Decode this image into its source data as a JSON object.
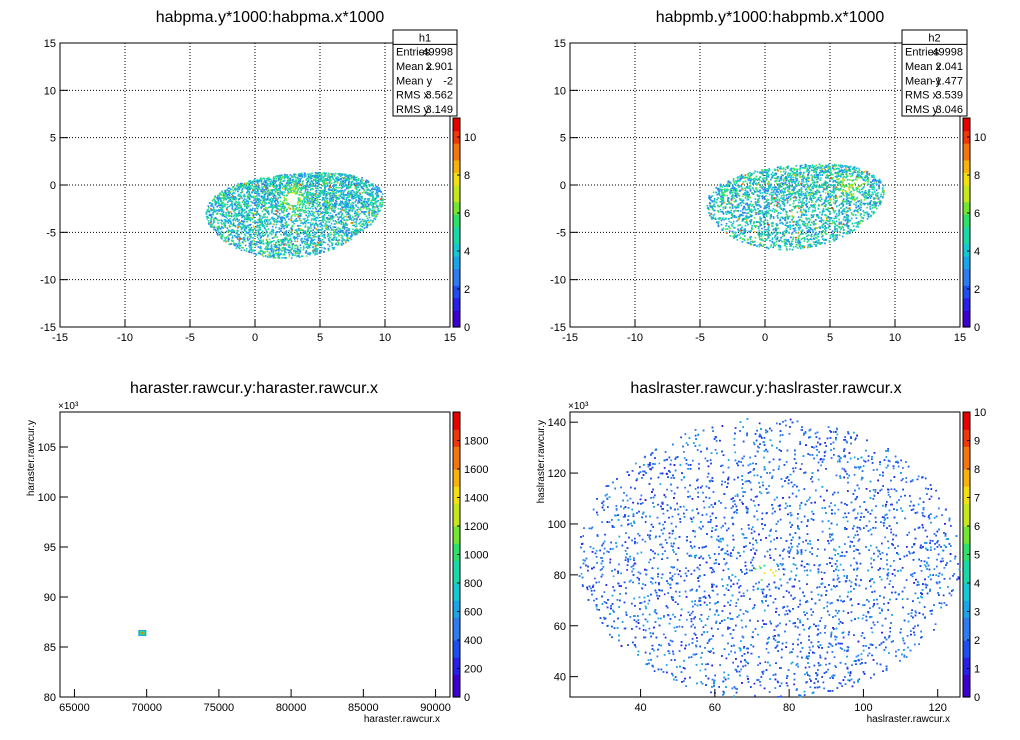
{
  "chart_data": [
    {
      "type": "heatmap",
      "title": "habpma.y*1000:habpma.x*1000",
      "xlabel": "",
      "ylabel": "",
      "xlim": [
        -15,
        15
      ],
      "ylim": [
        -15,
        15
      ],
      "xticks": [
        "-15",
        "-10",
        "-5",
        "0",
        "5",
        "10",
        "15"
      ],
      "yticks": [
        "-15",
        "-10",
        "-5",
        "0",
        "5",
        "10",
        "15"
      ],
      "grid": true,
      "palette_ticks": [
        "0",
        "2",
        "4",
        "6",
        "8",
        "10"
      ],
      "palette_max": 11,
      "stats": {
        "name": "h1",
        "rows": [
          {
            "label": "Entries",
            "value": "49998"
          },
          {
            "label": "Mean x",
            "value": "2.901"
          },
          {
            "label": "Mean y",
            "value": "-2"
          },
          {
            "label": "RMS x",
            "value": "3.562"
          },
          {
            "label": "RMS y",
            "value": "3.149"
          }
        ]
      },
      "blob": {
        "cx": 3,
        "cy": -2.2,
        "rx": 6.5,
        "ry": 6.2,
        "hole": [
          2.8,
          -1.4
        ],
        "hot": [
          2.8,
          -1.4
        ]
      }
    },
    {
      "type": "heatmap",
      "title": "habpmb.y*1000:habpmb.x*1000",
      "xlabel": "",
      "ylabel": "",
      "xlim": [
        -15,
        15
      ],
      "ylim": [
        -15,
        15
      ],
      "xticks": [
        "-15",
        "-10",
        "-5",
        "0",
        "5",
        "10",
        "15"
      ],
      "yticks": [
        "-15",
        "-10",
        "-5",
        "0",
        "5",
        "10",
        "15"
      ],
      "grid": true,
      "palette_ticks": [
        "0",
        "2",
        "4",
        "6",
        "8",
        "10"
      ],
      "palette_max": 11,
      "stats": {
        "name": "h2",
        "rows": [
          {
            "label": "Entries",
            "value": "49998"
          },
          {
            "label": "Mean x",
            "value": "2.041"
          },
          {
            "label": "Mean y",
            "value": "-1.477"
          },
          {
            "label": "RMS x",
            "value": "3.539"
          },
          {
            "label": "RMS y",
            "value": "3.046"
          }
        ]
      },
      "blob": {
        "cx": 2.3,
        "cy": -1.3,
        "rx": 6.5,
        "ry": 6.2,
        "hole": null,
        "hot": [
          6.5,
          0
        ]
      }
    },
    {
      "type": "heatmap",
      "title": "haraster.rawcur.y:haraster.rawcur.x",
      "xlabel": "haraster.rawcur.x",
      "ylabel": "haraster.rawcur.y",
      "xlim": [
        64000,
        91000
      ],
      "ylim": [
        80000,
        108500
      ],
      "xtick_values": [
        65000,
        70000,
        75000,
        80000,
        85000,
        90000
      ],
      "xticks": [
        "65000",
        "70000",
        "75000",
        "80000",
        "85000",
        "90000"
      ],
      "ytick_values": [
        80000,
        85000,
        90000,
        95000,
        100000,
        105000
      ],
      "yticks": [
        "80",
        "85",
        "90",
        "95",
        "100",
        "105"
      ],
      "yexp": "×10³",
      "grid": false,
      "palette_ticks": [
        "0",
        "200",
        "400",
        "600",
        "800",
        "1000",
        "1200",
        "1400",
        "1600",
        "1800"
      ],
      "palette_max": 2000,
      "spot": {
        "x": 69700,
        "y": 86400
      }
    },
    {
      "type": "heatmap",
      "title": "haslraster.rawcur.y:haslraster.rawcur.x",
      "xlabel": "haslraster.rawcur.x",
      "ylabel": "haslraster.rawcur.y",
      "xlim": [
        21000,
        126000
      ],
      "ylim": [
        32000,
        144000
      ],
      "xtick_values": [
        40000,
        60000,
        80000,
        100000,
        120000
      ],
      "xticks": [
        "40",
        "60",
        "80",
        "100",
        "120"
      ],
      "ytick_values": [
        40000,
        60000,
        80000,
        100000,
        120000,
        140000
      ],
      "yticks": [
        "40",
        "60",
        "80",
        "100",
        "120",
        "140"
      ],
      "yexp": "×10³",
      "grid": false,
      "palette_ticks": [
        "0",
        "1",
        "2",
        "3",
        "4",
        "5",
        "6",
        "7",
        "8",
        "9",
        "10"
      ],
      "palette_max": 10,
      "blob": {
        "cx": 74500,
        "cy": 86500,
        "rx": 51500,
        "ry": 55500,
        "hot": [
          73500,
          82000
        ]
      }
    }
  ]
}
